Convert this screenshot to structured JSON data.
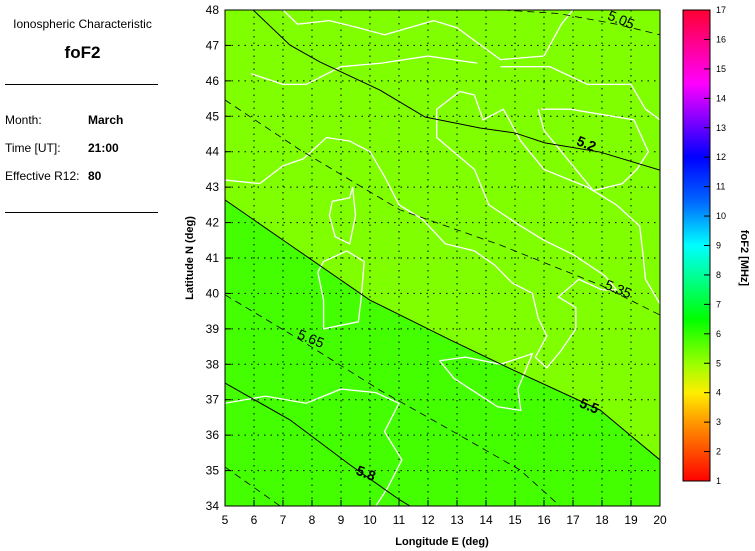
{
  "panel": {
    "heading": "Ionospheric Characteristic",
    "characteristic": "foF2",
    "fields": [
      {
        "label": "Month:",
        "value": "March"
      },
      {
        "label": "Time [UT]:",
        "value": "21:00"
      },
      {
        "label": "Effective R12:",
        "value": "80"
      }
    ]
  },
  "map": {
    "xlabel": "Longitude E (deg)",
    "ylabel": "Latitude N (deg)",
    "xlim": [
      5,
      20
    ],
    "ylim": [
      34,
      48
    ],
    "xticks": [
      "5",
      "6",
      "7",
      "8",
      "9",
      "10",
      "11",
      "12",
      "13",
      "14",
      "15",
      "16",
      "17",
      "18",
      "19",
      "20"
    ],
    "yticks": [
      "34",
      "35",
      "36",
      "37",
      "38",
      "39",
      "40",
      "41",
      "42",
      "43",
      "44",
      "45",
      "46",
      "47",
      "48"
    ],
    "grid": true,
    "colors": {
      "region_low": "#80ff00",
      "region_high": "#44ff00",
      "coastline": "#ffffff",
      "contour": "#000000"
    },
    "contours": [
      {
        "label": "5.05",
        "style": "dashed",
        "points": [
          [
            14.6,
            48
          ],
          [
            16.5,
            47.9
          ],
          [
            18.5,
            47.6
          ],
          [
            20,
            47.3
          ]
        ],
        "label_at": [
          18.6,
          47.6
        ]
      },
      {
        "label": "5.2",
        "style": "solid",
        "points": [
          [
            5.97,
            48
          ],
          [
            7.24,
            47.01
          ],
          [
            8.28,
            46.53
          ],
          [
            10.34,
            45.74
          ],
          [
            11.9,
            44.98
          ],
          [
            13.79,
            44.67
          ],
          [
            15,
            44.53
          ],
          [
            16.03,
            44.25
          ],
          [
            17.93,
            43.99
          ],
          [
            20,
            43.48
          ]
        ],
        "label_at": [
          17.4,
          44.1
        ]
      },
      {
        "label": "5.35",
        "style": "dashed",
        "points": [
          [
            5,
            45.46
          ],
          [
            7.59,
            44.05
          ],
          [
            11.03,
            42.36
          ],
          [
            14.48,
            41.37
          ],
          [
            17.93,
            40.24
          ],
          [
            20,
            39.39
          ]
        ],
        "label_at": [
          18.5,
          40.0
        ]
      },
      {
        "label": "5.5",
        "style": "solid",
        "points": [
          [
            5,
            42.64
          ],
          [
            7.24,
            41.37
          ],
          [
            10,
            39.81
          ],
          [
            12.76,
            38.69
          ],
          [
            14.93,
            37.84
          ],
          [
            17.93,
            36.71
          ],
          [
            18.97,
            36
          ],
          [
            20,
            35.3
          ]
        ],
        "label_at": [
          17.5,
          36.7
        ]
      },
      {
        "label": "5.65",
        "style": "dashed",
        "points": [
          [
            5,
            39.96
          ],
          [
            7.59,
            38.69
          ],
          [
            10.34,
            37.27
          ],
          [
            12.76,
            36.15
          ],
          [
            15.17,
            35.02
          ],
          [
            16.55,
            34
          ]
        ],
        "label_at": [
          7.9,
          38.6
        ]
      },
      {
        "label": "5.8",
        "style": "solid",
        "points": [
          [
            5,
            37.47
          ],
          [
            7.24,
            36.43
          ],
          [
            9.31,
            35.16
          ],
          [
            11.03,
            34.17
          ],
          [
            11.38,
            34
          ]
        ],
        "label_at": [
          9.8,
          34.8
        ]
      },
      {
        "label": "",
        "style": "dashed",
        "points": [
          [
            5,
            35.1
          ],
          [
            6.9,
            34
          ]
        ]
      }
    ]
  },
  "colorbar": {
    "label": "foF2 [MHz]",
    "range": [
      1,
      17
    ],
    "ticks": [
      "1",
      "2",
      "3",
      "4",
      "5",
      "6",
      "7",
      "8",
      "9",
      "10",
      "11",
      "12",
      "13",
      "14",
      "15",
      "16",
      "17"
    ],
    "stops": [
      [
        1,
        "#ff0000"
      ],
      [
        3,
        "#ff9900"
      ],
      [
        4,
        "#ffee00"
      ],
      [
        5,
        "#99ff00"
      ],
      [
        6.5,
        "#00ff00"
      ],
      [
        9,
        "#00ffff"
      ],
      [
        10.5,
        "#0066ff"
      ],
      [
        12,
        "#0000ff"
      ],
      [
        13.5,
        "#9900ff"
      ],
      [
        14.5,
        "#ff00ff"
      ],
      [
        17,
        "#ff0033"
      ]
    ]
  }
}
